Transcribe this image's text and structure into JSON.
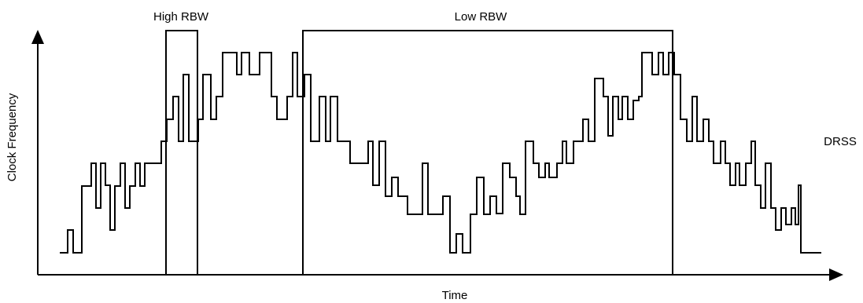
{
  "axes": {
    "x_label": "Time",
    "y_label": "Clock Frequency"
  },
  "regions": [
    {
      "label": "High RBW"
    },
    {
      "label": "Low RBW"
    }
  ],
  "series_label": "DRSS",
  "colors": {
    "line": "#000000",
    "background": "#ffffff"
  }
}
